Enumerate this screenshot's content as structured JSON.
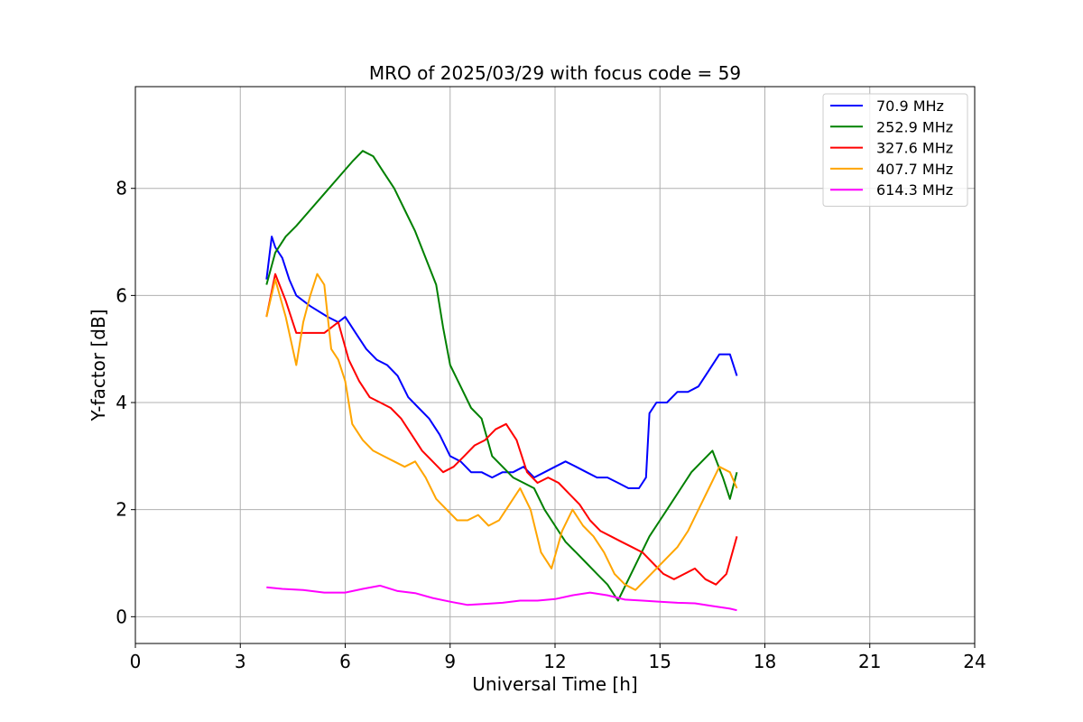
{
  "chart_data": {
    "type": "line",
    "title": "MRO of 2025/03/29 with focus code = 59",
    "xlabel": "Universal Time [h]",
    "ylabel": "Y-factor [dB]",
    "xlim": [
      0,
      24
    ],
    "ylim": [
      -0.5,
      9.9
    ],
    "xticks": [
      0,
      3,
      6,
      9,
      12,
      15,
      18,
      21,
      24
    ],
    "yticks": [
      0,
      2,
      4,
      6,
      8
    ],
    "grid": true,
    "legend_position": "top-right",
    "series": [
      {
        "name": " 70.9 MHz",
        "color": "#0000ff",
        "x": [
          3.75,
          3.9,
          4.0,
          4.2,
          4.4,
          4.6,
          5.0,
          5.5,
          5.8,
          6.0,
          6.3,
          6.6,
          6.9,
          7.2,
          7.5,
          7.8,
          8.1,
          8.4,
          8.7,
          9.0,
          9.3,
          9.6,
          9.9,
          10.2,
          10.5,
          10.8,
          11.1,
          11.4,
          11.7,
          12.0,
          12.3,
          12.6,
          12.9,
          13.2,
          13.5,
          13.8,
          14.1,
          14.4,
          14.6,
          14.7,
          14.9,
          15.2,
          15.5,
          15.8,
          16.1,
          16.4,
          16.7,
          17.0,
          17.2
        ],
        "y": [
          6.3,
          7.1,
          6.9,
          6.7,
          6.3,
          6.0,
          5.8,
          5.6,
          5.5,
          5.6,
          5.3,
          5.0,
          4.8,
          4.7,
          4.5,
          4.1,
          3.9,
          3.7,
          3.4,
          3.0,
          2.9,
          2.7,
          2.7,
          2.6,
          2.7,
          2.7,
          2.8,
          2.6,
          2.7,
          2.8,
          2.9,
          2.8,
          2.7,
          2.6,
          2.6,
          2.5,
          2.4,
          2.4,
          2.6,
          3.8,
          4.0,
          4.0,
          4.2,
          4.2,
          4.3,
          4.6,
          4.9,
          4.9,
          4.5
        ]
      },
      {
        "name": "252.9 MHz",
        "color": "#008000",
        "x": [
          3.75,
          4.0,
          4.3,
          4.6,
          5.0,
          5.4,
          5.8,
          6.2,
          6.5,
          6.8,
          7.1,
          7.4,
          7.7,
          8.0,
          8.3,
          8.6,
          8.8,
          9.0,
          9.3,
          9.6,
          9.9,
          10.2,
          10.5,
          10.8,
          11.1,
          11.4,
          11.7,
          12.0,
          12.3,
          12.6,
          12.9,
          13.2,
          13.5,
          13.8,
          14.1,
          14.4,
          14.7,
          15.0,
          15.3,
          15.6,
          15.9,
          16.2,
          16.5,
          16.8,
          17.0,
          17.2
        ],
        "y": [
          6.2,
          6.8,
          7.1,
          7.3,
          7.6,
          7.9,
          8.2,
          8.5,
          8.7,
          8.6,
          8.3,
          8.0,
          7.6,
          7.2,
          6.7,
          6.2,
          5.4,
          4.7,
          4.3,
          3.9,
          3.7,
          3.0,
          2.8,
          2.6,
          2.5,
          2.4,
          2.0,
          1.7,
          1.4,
          1.2,
          1.0,
          0.8,
          0.6,
          0.3,
          0.7,
          1.1,
          1.5,
          1.8,
          2.1,
          2.4,
          2.7,
          2.9,
          3.1,
          2.6,
          2.2,
          2.7
        ]
      },
      {
        "name": "327.6 MHz",
        "color": "#ff0000",
        "x": [
          3.75,
          4.0,
          4.3,
          4.6,
          5.0,
          5.4,
          5.8,
          6.1,
          6.4,
          6.7,
          7.0,
          7.3,
          7.6,
          7.9,
          8.2,
          8.5,
          8.8,
          9.1,
          9.4,
          9.7,
          10.0,
          10.3,
          10.6,
          10.9,
          11.2,
          11.5,
          11.8,
          12.1,
          12.4,
          12.7,
          13.0,
          13.3,
          13.6,
          13.9,
          14.2,
          14.5,
          14.8,
          15.1,
          15.4,
          15.7,
          16.0,
          16.3,
          16.6,
          16.9,
          17.2
        ],
        "y": [
          5.6,
          6.4,
          5.9,
          5.3,
          5.3,
          5.3,
          5.5,
          4.8,
          4.4,
          4.1,
          4.0,
          3.9,
          3.7,
          3.4,
          3.1,
          2.9,
          2.7,
          2.8,
          3.0,
          3.2,
          3.3,
          3.5,
          3.6,
          3.3,
          2.7,
          2.5,
          2.6,
          2.5,
          2.3,
          2.1,
          1.8,
          1.6,
          1.5,
          1.4,
          1.3,
          1.2,
          1.0,
          0.8,
          0.7,
          0.8,
          0.9,
          0.7,
          0.6,
          0.8,
          1.5
        ]
      },
      {
        "name": "407.7 MHz",
        "color": "#ffa500",
        "x": [
          3.75,
          4.0,
          4.3,
          4.6,
          4.8,
          5.0,
          5.2,
          5.4,
          5.6,
          5.8,
          6.0,
          6.2,
          6.5,
          6.8,
          7.1,
          7.4,
          7.7,
          8.0,
          8.3,
          8.6,
          8.9,
          9.2,
          9.5,
          9.8,
          10.1,
          10.4,
          10.7,
          11.0,
          11.3,
          11.6,
          11.9,
          12.2,
          12.5,
          12.8,
          13.1,
          13.4,
          13.7,
          14.0,
          14.3,
          14.6,
          14.9,
          15.2,
          15.5,
          15.8,
          16.1,
          16.4,
          16.7,
          17.0,
          17.2
        ],
        "y": [
          5.6,
          6.3,
          5.6,
          4.7,
          5.5,
          6.0,
          6.4,
          6.2,
          5.0,
          4.8,
          4.4,
          3.6,
          3.3,
          3.1,
          3.0,
          2.9,
          2.8,
          2.9,
          2.6,
          2.2,
          2.0,
          1.8,
          1.8,
          1.9,
          1.7,
          1.8,
          2.1,
          2.4,
          2.0,
          1.2,
          0.9,
          1.6,
          2.0,
          1.7,
          1.5,
          1.2,
          0.8,
          0.6,
          0.5,
          0.7,
          0.9,
          1.1,
          1.3,
          1.6,
          2.0,
          2.4,
          2.8,
          2.7,
          2.4
        ]
      },
      {
        "name": "614.3 MHz",
        "color": "#ff00ff",
        "x": [
          3.75,
          4.2,
          4.8,
          5.4,
          6.0,
          6.5,
          7.0,
          7.5,
          8.0,
          8.5,
          9.0,
          9.5,
          10.0,
          10.5,
          11.0,
          11.5,
          12.0,
          12.5,
          13.0,
          13.5,
          14.0,
          14.5,
          15.0,
          15.5,
          16.0,
          16.5,
          17.0,
          17.2
        ],
        "y": [
          0.55,
          0.52,
          0.5,
          0.45,
          0.45,
          0.52,
          0.58,
          0.48,
          0.44,
          0.35,
          0.28,
          0.22,
          0.24,
          0.26,
          0.3,
          0.3,
          0.33,
          0.4,
          0.45,
          0.4,
          0.32,
          0.3,
          0.28,
          0.26,
          0.25,
          0.2,
          0.15,
          0.12
        ]
      }
    ]
  }
}
